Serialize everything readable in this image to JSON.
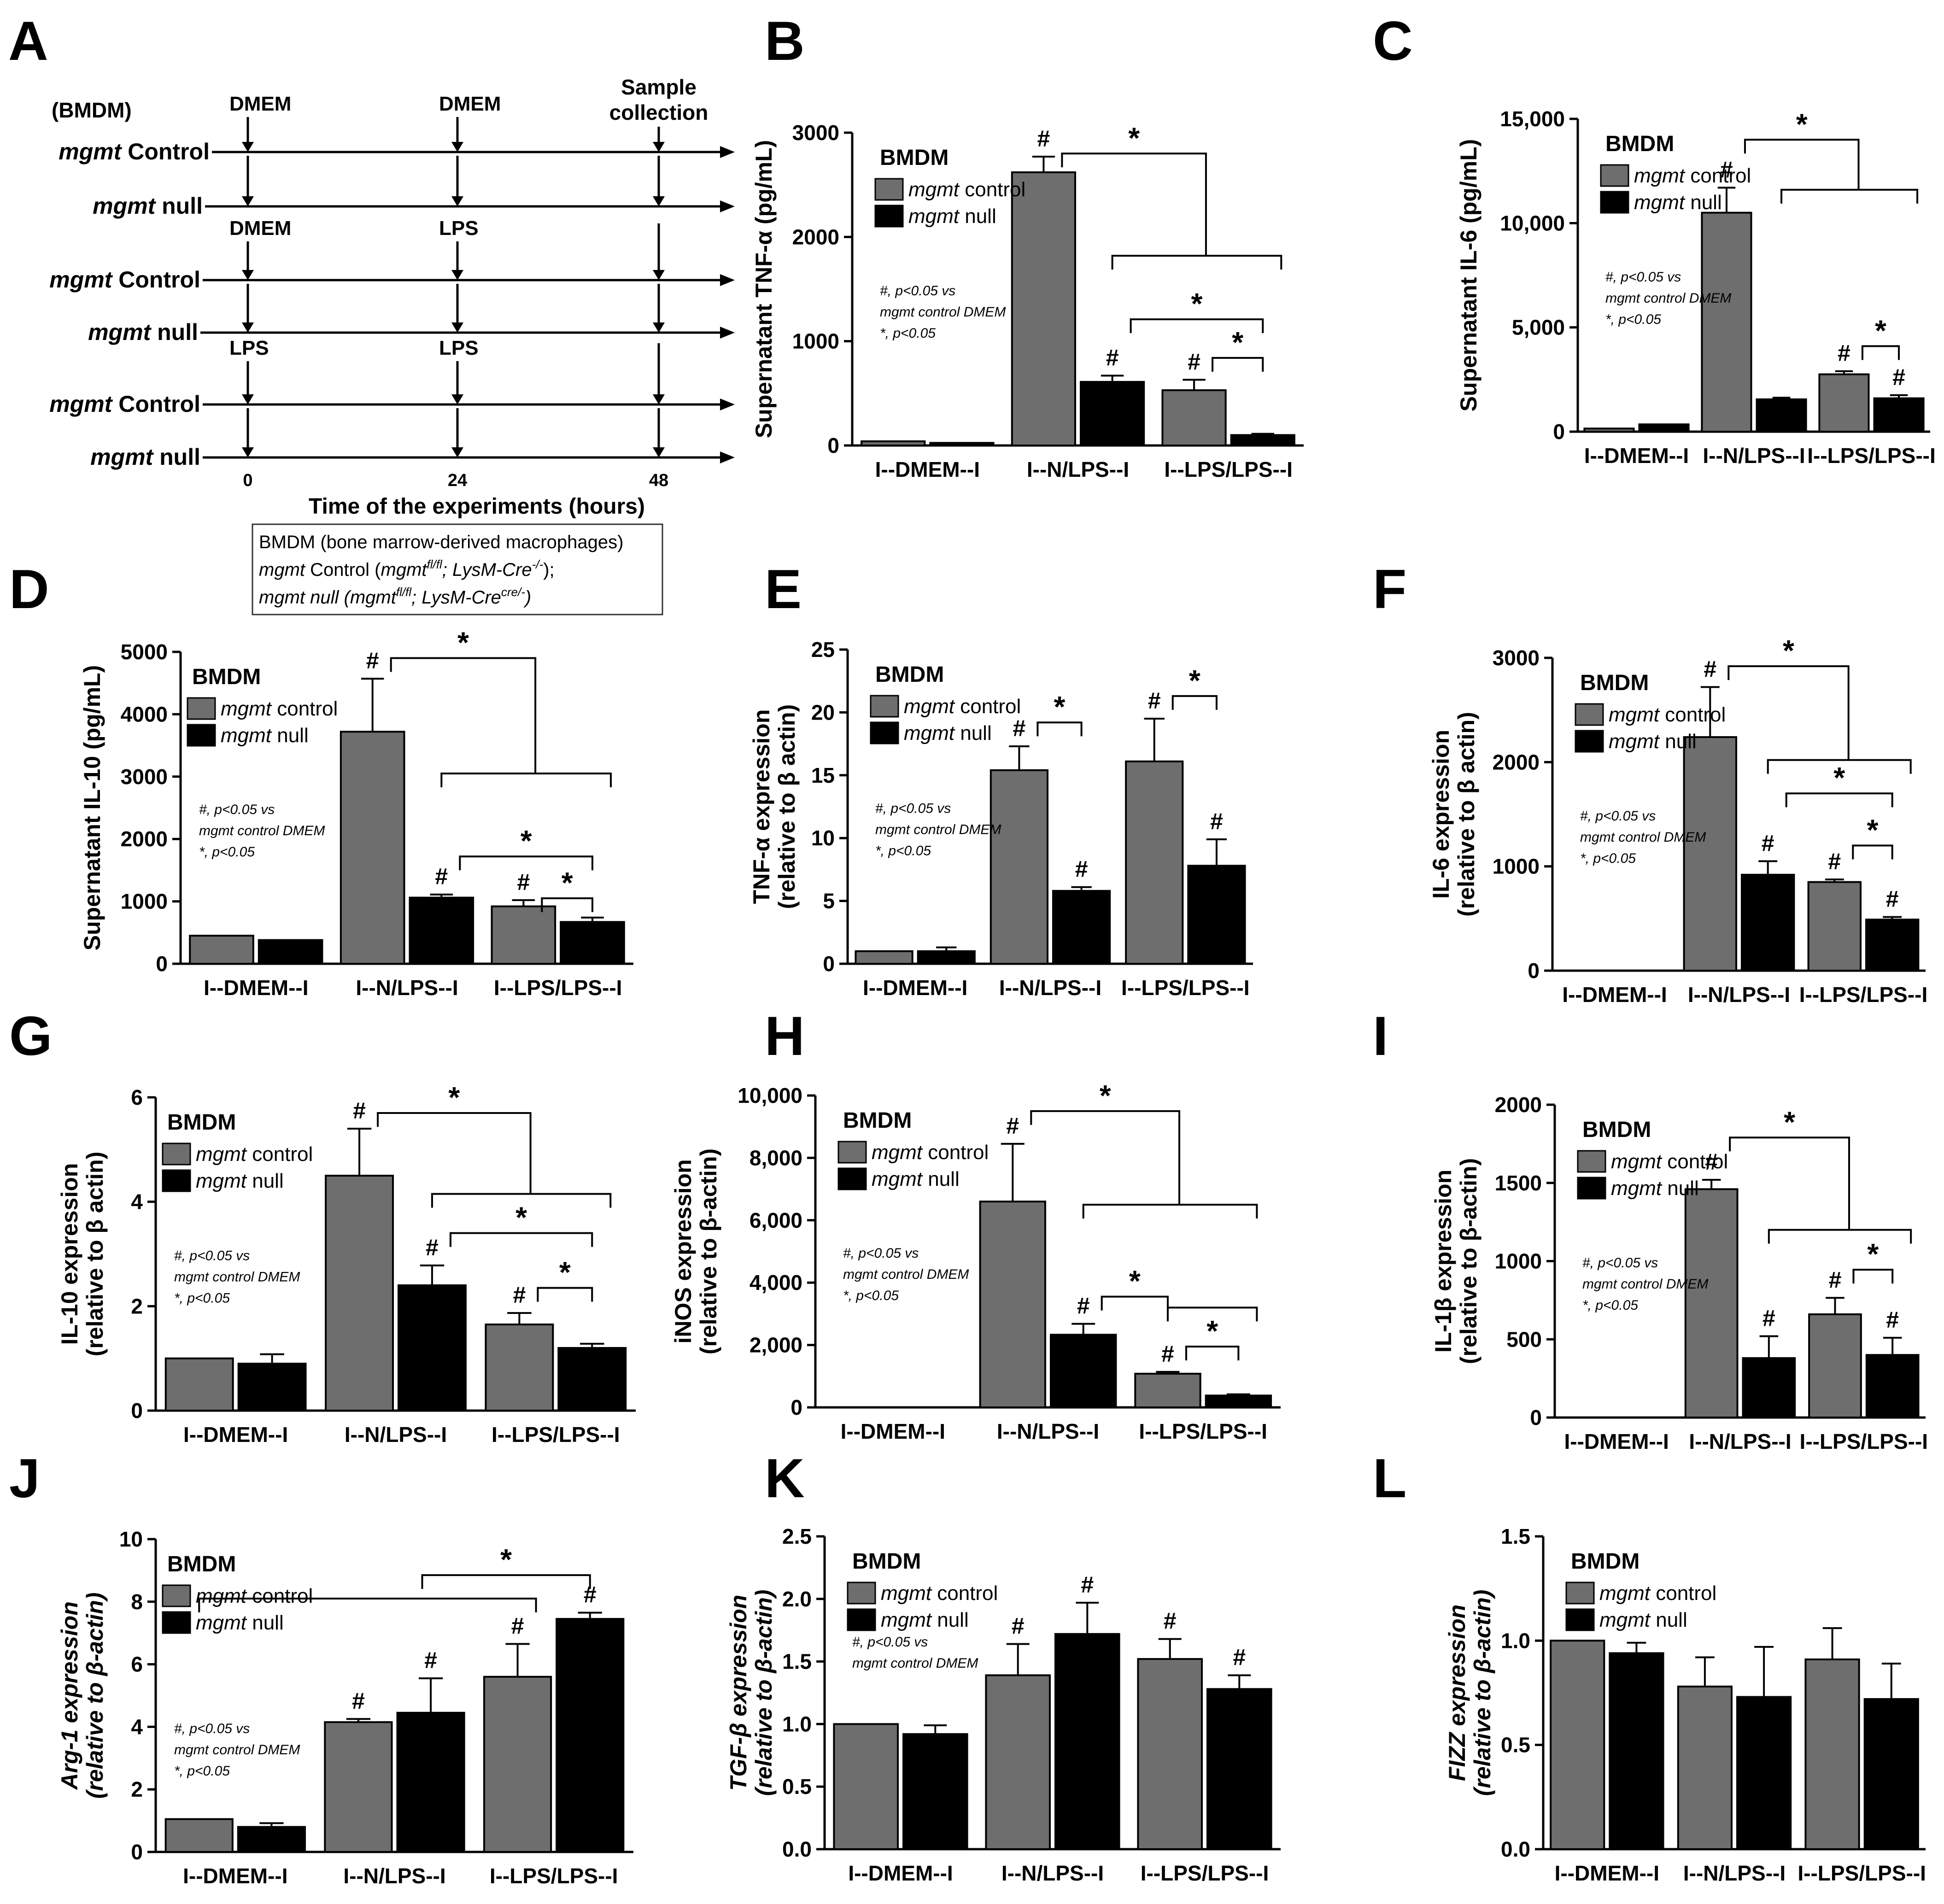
{
  "colors": {
    "control": "#6e6e6e",
    "null": "#000000"
  },
  "schematic": {
    "letter": "A",
    "header": "(BMDM)",
    "sample_label": [
      "Sample",
      "collection"
    ],
    "rows": [
      {
        "label_italic": "mgmt",
        "label_rest": " Control"
      },
      {
        "label_italic": "mgmt",
        "label_rest": " null"
      },
      {
        "label_italic": "mgmt",
        "label_rest": " Control"
      },
      {
        "label_italic": "mgmt",
        "label_rest": " null"
      },
      {
        "label_italic": "mgmt",
        "label_rest": " Control"
      },
      {
        "label_italic": "mgmt",
        "label_rest": " null"
      }
    ],
    "treatments": [
      {
        "t0": "DMEM",
        "t24": "DMEM"
      },
      {
        "t0": "DMEM",
        "t24": "LPS"
      },
      {
        "t0": "LPS",
        "t24": "LPS"
      }
    ],
    "timepoints": [
      "0",
      "24",
      "48"
    ],
    "time_axis_label": "Time of the experiments (hours)",
    "legend_box": {
      "line1": "BMDM (bone marrow-derived macrophages)",
      "line2_it": "mgmt",
      "line2_rest": " Control (",
      "line2_geno_a": "mgmt",
      "line2_sup_a": "fl/fl",
      "line2_geno_b": "; LysM-Cre",
      "line2_sup_b": "-/-",
      "line2_end": ");",
      "line3_it": "mgmt null (mgmt",
      "line3_sup_a": "fl/fl",
      "line3_mid": "; LysM-Cre",
      "line3_sup_b": "cre/-",
      "line3_end": ")"
    }
  },
  "chart_data": [
    {
      "id": "B",
      "type": "bar",
      "ylabel": "Supernatant TNF-α (pg/mL)",
      "ylim": [
        0,
        3000
      ],
      "ticks": [
        "0",
        "1000",
        "2000",
        "3000"
      ],
      "categories": [
        "I--DMEM--I",
        "I--N/LPS--I",
        "I--LPS/LPS--I"
      ],
      "series": [
        {
          "name": "mgmt control",
          "values": [
            40,
            2620,
            530
          ],
          "errors": [
            0,
            150,
            100
          ]
        },
        {
          "name": "mgmt null",
          "values": [
            25,
            610,
            100
          ],
          "errors": [
            0,
            60,
            12
          ]
        }
      ],
      "hash": [
        "c1",
        "n1",
        "c2"
      ],
      "note": [
        "#, p<0.05 vs",
        "mgmt control DMEM",
        "*, p<0.05"
      ],
      "legend_title": "BMDM"
    },
    {
      "id": "C",
      "type": "bar",
      "ylabel": "Supernatant IL-6 (pg/mL)",
      "ylim": [
        0,
        15000
      ],
      "ticks": [
        "0",
        "5,000",
        "10,000",
        "15,000"
      ],
      "categories": [
        "I--DMEM--I",
        "I--N/LPS--I",
        "I--LPS/LPS--I"
      ],
      "series": [
        {
          "name": "mgmt control",
          "values": [
            150,
            10500,
            2750
          ],
          "errors": [
            0,
            1200,
            150
          ]
        },
        {
          "name": "mgmt null",
          "values": [
            350,
            1550,
            1600
          ],
          "errors": [
            0,
            80,
            150
          ]
        }
      ],
      "hash": [
        "c1",
        "c2",
        "n2"
      ],
      "note": [
        "#, p<0.05 vs",
        "mgmt control DMEM",
        "*, p<0.05"
      ],
      "legend_title": "BMDM"
    },
    {
      "id": "D",
      "type": "bar",
      "ylabel": "Supernatant IL-10 (pg/mL)",
      "ylim": [
        0,
        5000
      ],
      "ticks": [
        "0",
        "1000",
        "2000",
        "3000",
        "4000",
        "5000"
      ],
      "categories": [
        "I--DMEM--I",
        "I--N/LPS--I",
        "I--LPS/LPS--I"
      ],
      "series": [
        {
          "name": "mgmt control",
          "values": [
            450,
            3720,
            920
          ],
          "errors": [
            0,
            850,
            100
          ]
        },
        {
          "name": "mgmt null",
          "values": [
            380,
            1060,
            670
          ],
          "errors": [
            0,
            50,
            70
          ]
        }
      ],
      "hash": [
        "c1",
        "n1",
        "c2"
      ],
      "note": [
        "#, p<0.05 vs",
        "mgmt control DMEM",
        "*, p<0.05"
      ],
      "legend_title": "BMDM"
    },
    {
      "id": "E",
      "type": "bar",
      "ylabel": "TNF-α expression (relative to β actin)",
      "ylim": [
        0,
        25
      ],
      "ticks": [
        "0",
        "5",
        "10",
        "15",
        "20",
        "25"
      ],
      "categories": [
        "I--DMEM--I",
        "I--N/LPS--I",
        "I--LPS/LPS--I"
      ],
      "series": [
        {
          "name": "mgmt control",
          "values": [
            1.0,
            15.4,
            16.1
          ],
          "errors": [
            0,
            1.9,
            3.4
          ]
        },
        {
          "name": "mgmt null",
          "values": [
            1.0,
            5.8,
            7.8
          ],
          "errors": [
            0.3,
            0.3,
            2.1
          ]
        }
      ],
      "hash": [
        "c1",
        "n1",
        "c2",
        "n2"
      ],
      "note": [
        "#, p<0.05 vs",
        "mgmt control DMEM",
        "*, p<0.05"
      ],
      "legend_title": "BMDM"
    },
    {
      "id": "F",
      "type": "bar",
      "ylabel": "IL-6 expression (relative to β actin)",
      "ylim": [
        0,
        3000
      ],
      "ticks": [
        "0",
        "1000",
        "2000",
        "3000"
      ],
      "categories": [
        "I--DMEM--I",
        "I--N/LPS--I",
        "I--LPS/LPS--I"
      ],
      "series": [
        {
          "name": "mgmt control",
          "values": [
            0,
            2240,
            850
          ],
          "errors": [
            0,
            480,
            25
          ]
        },
        {
          "name": "mgmt null",
          "values": [
            0,
            920,
            490
          ],
          "errors": [
            0,
            130,
            25
          ]
        }
      ],
      "hash": [
        "c1",
        "n1",
        "c2",
        "n2"
      ],
      "note": [
        "#, p<0.05 vs",
        "mgmt control DMEM",
        "*, p<0.05"
      ],
      "legend_title": "BMDM"
    },
    {
      "id": "G",
      "type": "bar",
      "ylabel": "IL-10 expression (relative to β actin)",
      "ylim": [
        0,
        6
      ],
      "ticks": [
        "0",
        "2",
        "4",
        "6"
      ],
      "categories": [
        "I--DMEM--I",
        "I--N/LPS--I",
        "I--LPS/LPS--I"
      ],
      "series": [
        {
          "name": "mgmt control",
          "values": [
            1.0,
            4.5,
            1.65
          ],
          "errors": [
            0,
            0.9,
            0.22
          ]
        },
        {
          "name": "mgmt null",
          "values": [
            0.9,
            2.4,
            1.2
          ],
          "errors": [
            0.18,
            0.38,
            0.08
          ]
        }
      ],
      "hash": [
        "c1",
        "n1",
        "c2"
      ],
      "note": [
        "#, p<0.05 vs",
        "mgmt control DMEM",
        "*, p<0.05"
      ],
      "legend_title": "BMDM"
    },
    {
      "id": "H",
      "type": "bar",
      "ylabel": "iNOS expression (relative to β-actin)",
      "ylim": [
        0,
        10000
      ],
      "ticks": [
        "0",
        "2,000",
        "4,000",
        "6,000",
        "8,000",
        "10,000"
      ],
      "categories": [
        "I--DMEM--I",
        "I--N/LPS--I",
        "I--LPS/LPS--I"
      ],
      "series": [
        {
          "name": "mgmt control",
          "values": [
            0,
            6600,
            1080
          ],
          "errors": [
            0,
            1850,
            60
          ]
        },
        {
          "name": "mgmt null",
          "values": [
            0,
            2330,
            380
          ],
          "errors": [
            0,
            350,
            40
          ]
        }
      ],
      "hash": [
        "c1",
        "n1",
        "c2"
      ],
      "note": [
        "#, p<0.05 vs",
        "mgmt control DMEM",
        "*, p<0.05"
      ],
      "legend_title": "BMDM"
    },
    {
      "id": "I",
      "type": "bar",
      "ylabel": "IL-1β expression (relative to β-actin)",
      "ylim": [
        0,
        2000
      ],
      "ticks": [
        "0",
        "500",
        "1000",
        "1500",
        "2000"
      ],
      "categories": [
        "I--DMEM--I",
        "I--N/LPS--I",
        "I--LPS/LPS--I"
      ],
      "series": [
        {
          "name": "mgmt control",
          "values": [
            0,
            1460,
            660
          ],
          "errors": [
            0,
            60,
            105
          ]
        },
        {
          "name": "mgmt null",
          "values": [
            0,
            380,
            400
          ],
          "errors": [
            0,
            140,
            110
          ]
        }
      ],
      "hash": [
        "c1",
        "n1",
        "c2",
        "n2"
      ],
      "note": [
        "#, p<0.05 vs",
        "mgmt control DMEM",
        "*, p<0.05"
      ],
      "legend_title": "BMDM"
    },
    {
      "id": "J",
      "type": "bar",
      "ylabel": "Arg-1 expression (relative to β-actin)",
      "ylim": [
        0,
        10
      ],
      "ticks": [
        "0",
        "2",
        "4",
        "6",
        "8",
        "10"
      ],
      "categories": [
        "I--DMEM--I",
        "I--N/LPS--I",
        "I--LPS/LPS--I"
      ],
      "series": [
        {
          "name": "mgmt control",
          "values": [
            1.05,
            4.15,
            5.6
          ],
          "errors": [
            0,
            0.1,
            1.05
          ]
        },
        {
          "name": "mgmt null",
          "values": [
            0.8,
            4.45,
            7.45
          ],
          "errors": [
            0.12,
            1.1,
            0.2
          ]
        }
      ],
      "hash": [
        "c1",
        "n1",
        "c2",
        "n2"
      ],
      "note": [
        "#, p<0.05 vs",
        "mgmt control DMEM",
        "*, p<0.05"
      ],
      "legend_title": "BMDM"
    },
    {
      "id": "K",
      "type": "bar",
      "ylabel": "TGF-β expression (relative to β-actin)",
      "ylim": [
        0,
        2.5
      ],
      "ticks": [
        "0.0",
        "0.5",
        "1.0",
        "1.5",
        "2.0",
        "2.5"
      ],
      "categories": [
        "I--DMEM--I",
        "I--N/LPS--I",
        "I--LPS/LPS--I"
      ],
      "series": [
        {
          "name": "mgmt control",
          "values": [
            1.0,
            1.39,
            1.52
          ],
          "errors": [
            0,
            0.25,
            0.16
          ]
        },
        {
          "name": "mgmt null",
          "values": [
            0.92,
            1.72,
            1.28
          ],
          "errors": [
            0.07,
            0.25,
            0.11
          ]
        }
      ],
      "hash": [
        "c1",
        "n1",
        "c2",
        "n2"
      ],
      "note": [
        "#, p<0.05 vs",
        "mgmt control DMEM"
      ],
      "legend_title": "BMDM"
    },
    {
      "id": "L",
      "type": "bar",
      "ylabel": "FIZZ expression (relative to β-actin)",
      "ylim": [
        0,
        1.5
      ],
      "ticks": [
        "0.0",
        "0.5",
        "1.0",
        "1.5"
      ],
      "categories": [
        "I--DMEM--I",
        "I--N/LPS--I",
        "I--LPS/LPS--I"
      ],
      "series": [
        {
          "name": "mgmt control",
          "values": [
            1.0,
            0.78,
            0.91
          ],
          "errors": [
            0,
            0.14,
            0.15
          ]
        },
        {
          "name": "mgmt null",
          "values": [
            0.94,
            0.73,
            0.72
          ],
          "errors": [
            0.05,
            0.24,
            0.17
          ]
        }
      ],
      "hash": [],
      "note": [],
      "legend_title": "BMDM"
    }
  ]
}
